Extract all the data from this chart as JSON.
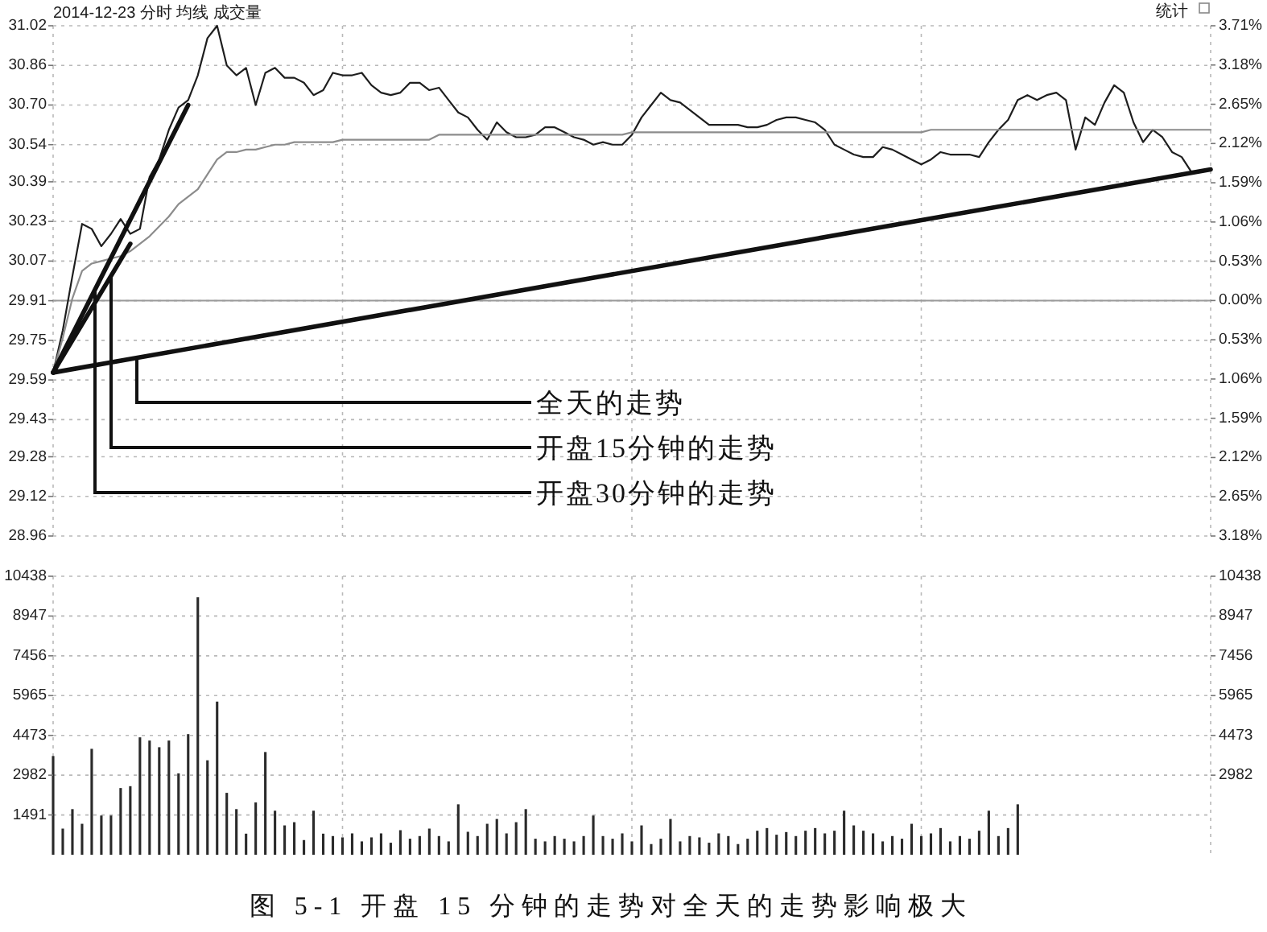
{
  "chart_data": [
    {
      "type": "line",
      "title": "2014-12-23 分时 均线 成交量",
      "categories": [
        null,
        null,
        null,
        null,
        null,
        null,
        null,
        null,
        null,
        null,
        null,
        null,
        null,
        null,
        null,
        null,
        null,
        null,
        null,
        null,
        null,
        null,
        null,
        null,
        null,
        null,
        null,
        null,
        null,
        null,
        null,
        null,
        null,
        null,
        null,
        null,
        null,
        null,
        null,
        null,
        null,
        null,
        null,
        null,
        null,
        null,
        null,
        null,
        null,
        null,
        null,
        null,
        null,
        null,
        null,
        null,
        null,
        null,
        null,
        null,
        null,
        null,
        null,
        null,
        null,
        null,
        null,
        null,
        null,
        null,
        null,
        null,
        null,
        null,
        null,
        null,
        null,
        null,
        null,
        null,
        null,
        null,
        null,
        null,
        null,
        null,
        null,
        null,
        null,
        null,
        null,
        null,
        null,
        null,
        null,
        null,
        null,
        null,
        null,
        null,
        null,
        null,
        null,
        null,
        null,
        null,
        null,
        null,
        null,
        null,
        null,
        null,
        null,
        null,
        null,
        null,
        null,
        null,
        null,
        null,
        null
      ],
      "series": [
        {
          "color": "#1e1e1e",
          "values": [
            29.62,
            29.79,
            30.01,
            30.22,
            30.2,
            30.13,
            30.18,
            30.24,
            30.18,
            30.2,
            30.41,
            30.48,
            30.6,
            30.69,
            30.72,
            30.82,
            30.97,
            31.02,
            30.86,
            30.82,
            30.85,
            30.7,
            30.83,
            30.85,
            30.81,
            30.81,
            30.79,
            30.74,
            30.76,
            30.83,
            30.82,
            30.82,
            30.83,
            30.78,
            30.75,
            30.74,
            30.75,
            30.79,
            30.79,
            30.76,
            30.77,
            30.72,
            30.67,
            30.65,
            30.6,
            30.56,
            30.63,
            30.59,
            30.57,
            30.57,
            30.58,
            30.61,
            30.61,
            30.59,
            30.57,
            30.56,
            30.54,
            30.55,
            30.54,
            30.54,
            30.58,
            30.65,
            30.7,
            30.75,
            30.72,
            30.71,
            30.68,
            30.65,
            30.62,
            30.62,
            30.62,
            30.62,
            30.61,
            30.61,
            30.62,
            30.64,
            30.65,
            30.65,
            30.64,
            30.63,
            30.6,
            30.54,
            30.52,
            30.5,
            30.49,
            30.49,
            30.53,
            30.52,
            30.5,
            30.48,
            30.46,
            30.48,
            30.51,
            30.5,
            30.5,
            30.5,
            30.49,
            30.55,
            30.6,
            30.64,
            30.72,
            30.74,
            30.72,
            30.74,
            30.75,
            30.72,
            30.52,
            30.65,
            30.62,
            30.71,
            30.78,
            30.75,
            30.63,
            30.55,
            30.6,
            30.57,
            30.51,
            30.49,
            30.43,
            30.43,
            null
          ]
        },
        {
          "color": "#8c8c8c",
          "values": [
            29.62,
            29.76,
            29.92,
            30.03,
            30.06,
            30.07,
            30.08,
            30.09,
            30.11,
            30.14,
            30.17,
            30.21,
            30.25,
            30.3,
            30.33,
            30.36,
            30.42,
            30.48,
            30.51,
            30.51,
            30.52,
            30.52,
            30.53,
            30.54,
            30.54,
            30.55,
            30.55,
            30.55,
            30.55,
            30.55,
            30.56,
            30.56,
            30.56,
            30.56,
            30.56,
            30.56,
            30.56,
            30.56,
            30.56,
            30.56,
            30.58,
            30.58,
            30.58,
            30.58,
            30.58,
            30.58,
            30.58,
            30.58,
            30.58,
            30.58,
            30.58,
            30.58,
            30.58,
            30.58,
            30.58,
            30.58,
            30.58,
            30.58,
            30.58,
            30.58,
            30.59,
            30.59,
            30.59,
            30.59,
            30.59,
            30.59,
            30.59,
            30.59,
            30.59,
            30.59,
            30.59,
            30.59,
            30.59,
            30.59,
            30.59,
            30.59,
            30.59,
            30.59,
            30.59,
            30.59,
            30.59,
            30.59,
            30.59,
            30.59,
            30.59,
            30.59,
            30.59,
            30.59,
            30.59,
            30.59,
            30.59,
            30.6,
            30.6,
            30.6,
            30.6,
            30.6,
            30.6,
            30.6,
            30.6,
            30.6,
            30.6,
            30.6,
            30.6,
            30.6,
            30.6,
            30.6,
            30.6,
            30.6,
            30.6,
            30.6,
            30.6,
            30.6,
            30.6,
            30.6,
            30.6,
            30.6,
            30.6,
            30.6,
            30.6,
            30.6,
            30.6
          ]
        },
        {
          "name": "全天的走势",
          "color": "#111111",
          "values": [
            29.62,
            null,
            null,
            null,
            null,
            null,
            null,
            null,
            null,
            null,
            null,
            null,
            null,
            null,
            null,
            null,
            null,
            null,
            null,
            null,
            null,
            null,
            null,
            null,
            null,
            null,
            null,
            null,
            null,
            null,
            null,
            null,
            null,
            null,
            null,
            null,
            null,
            null,
            null,
            null,
            null,
            null,
            null,
            null,
            null,
            null,
            null,
            null,
            null,
            null,
            null,
            null,
            null,
            null,
            null,
            null,
            null,
            null,
            null,
            null,
            null,
            null,
            null,
            null,
            null,
            null,
            null,
            null,
            null,
            null,
            null,
            null,
            null,
            null,
            null,
            null,
            null,
            null,
            null,
            null,
            null,
            null,
            null,
            null,
            null,
            null,
            null,
            null,
            null,
            null,
            null,
            null,
            null,
            null,
            null,
            null,
            null,
            null,
            null,
            null,
            null,
            null,
            null,
            null,
            null,
            null,
            null,
            null,
            null,
            null,
            null,
            null,
            null,
            null,
            null,
            null,
            null,
            null,
            null,
            null,
            30.44
          ]
        },
        {
          "name": "开盘15分钟的走势",
          "color": "#111111",
          "values": [
            29.62,
            null,
            null,
            null,
            null,
            null,
            null,
            null,
            30.14,
            null,
            null,
            null,
            null,
            null,
            null,
            null,
            null,
            null,
            null,
            null,
            null,
            null,
            null,
            null,
            null,
            null,
            null,
            null,
            null,
            null,
            null,
            null,
            null,
            null,
            null,
            null,
            null,
            null,
            null,
            null,
            null,
            null,
            null,
            null,
            null,
            null,
            null,
            null,
            null,
            null,
            null,
            null,
            null,
            null,
            null,
            null,
            null,
            null,
            null,
            null,
            null,
            null,
            null,
            null,
            null,
            null,
            null,
            null,
            null,
            null,
            null,
            null,
            null,
            null,
            null,
            null,
            null,
            null,
            null,
            null,
            null,
            null,
            null,
            null,
            null,
            null,
            null,
            null,
            null,
            null,
            null,
            null,
            null,
            null,
            null,
            null,
            null,
            null,
            null,
            null,
            null,
            null,
            null,
            null,
            null,
            null,
            null,
            null,
            null,
            null,
            null,
            null,
            null,
            null,
            null,
            null,
            null,
            null,
            null,
            null,
            null
          ]
        },
        {
          "name": "开盘30分钟的走势",
          "color": "#111111",
          "values": [
            29.62,
            null,
            null,
            null,
            null,
            null,
            null,
            null,
            null,
            null,
            null,
            null,
            null,
            null,
            30.7,
            null,
            null,
            null,
            null,
            null,
            null,
            null,
            null,
            null,
            null,
            null,
            null,
            null,
            null,
            null,
            null,
            null,
            null,
            null,
            null,
            null,
            null,
            null,
            null,
            null,
            null,
            null,
            null,
            null,
            null,
            null,
            null,
            null,
            null,
            null,
            null,
            null,
            null,
            null,
            null,
            null,
            null,
            null,
            null,
            null,
            null,
            null,
            null,
            null,
            null,
            null,
            null,
            null,
            null,
            null,
            null,
            null,
            null,
            null,
            null,
            null,
            null,
            null,
            null,
            null,
            null,
            null,
            null,
            null,
            null,
            null,
            null,
            null,
            null,
            null,
            null,
            null,
            null,
            null,
            null,
            null,
            null,
            null,
            null,
            null,
            null,
            null,
            null,
            null,
            null,
            null,
            null,
            null,
            null,
            null,
            null,
            null,
            null,
            null,
            null,
            null,
            null,
            null,
            null,
            null,
            null
          ]
        }
      ],
      "ylim": [
        28.96,
        31.02
      ],
      "yticks": [
        31.02,
        30.86,
        {
          "value": 30.7,
          "label": "30.70"
        },
        30.54,
        30.39,
        30.23,
        30.07,
        29.91,
        29.75,
        29.59,
        29.43,
        29.28,
        29.12,
        28.96
      ],
      "y2lim": [
        -3.18,
        3.71
      ],
      "y2ticks": [
        {
          "value": 3.71,
          "label": "3.71%"
        },
        {
          "value": 3.18,
          "label": "3.18%"
        },
        {
          "value": 2.65,
          "label": "2.65%"
        },
        {
          "value": 2.12,
          "label": "2.12%"
        },
        {
          "value": 1.59,
          "label": "1.59%"
        },
        {
          "value": 1.06,
          "label": "1.06%"
        },
        {
          "value": 0.53,
          "label": "0.53%"
        },
        {
          "value": 0,
          "label": "0.00%"
        },
        {
          "value": -0.53,
          "label": "0.53%"
        },
        {
          "value": -1.06,
          "label": "1.06%"
        },
        {
          "value": -1.59,
          "label": "1.59%"
        },
        {
          "value": -2.12,
          "label": "2.12%"
        },
        {
          "value": -2.65,
          "label": "2.65%"
        },
        {
          "value": -3.18,
          "label": "3.18%"
        }
      ],
      "grid": true,
      "ref_lines": [
        {
          "axis": "y",
          "value": 29.91,
          "color": "#9a9a9a"
        }
      ],
      "annotations": [
        "统计"
      ]
    },
    {
      "type": "bar",
      "categories": [
        null,
        null,
        null,
        null,
        null,
        null,
        null,
        null,
        null,
        null,
        null,
        null,
        null,
        null,
        null,
        null,
        null,
        null,
        null,
        null,
        null,
        null,
        null,
        null,
        null,
        null,
        null,
        null,
        null,
        null,
        null,
        null,
        null,
        null,
        null,
        null,
        null,
        null,
        null,
        null,
        null,
        null,
        null,
        null,
        null,
        null,
        null,
        null,
        null,
        null,
        null,
        null,
        null,
        null,
        null,
        null,
        null,
        null,
        null,
        null,
        null,
        null,
        null,
        null,
        null,
        null,
        null,
        null,
        null,
        null,
        null,
        null,
        null,
        null,
        null,
        null,
        null,
        null,
        null,
        null,
        null,
        null,
        null,
        null,
        null,
        null,
        null,
        null,
        null,
        null,
        null,
        null,
        null,
        null,
        null,
        null,
        null,
        null,
        null,
        null,
        null,
        null,
        null,
        null,
        null,
        null,
        null,
        null,
        null,
        null,
        null,
        null,
        null,
        null,
        null,
        null,
        null,
        null,
        null,
        null,
        null
      ],
      "values": [
        3700,
        980,
        1710,
        1160,
        3970,
        1470,
        1470,
        2500,
        2570,
        4400,
        4280,
        4030,
        4280,
        3050,
        4520,
        9650,
        3540,
        5740,
        2320,
        1710,
        790,
        1960,
        3850,
        1650,
        1100,
        1220,
        550,
        1650,
        790,
        700,
        650,
        800,
        500,
        650,
        800,
        450,
        920,
        600,
        700,
        980,
        700,
        500,
        1890,
        860,
        700,
        1160,
        1340,
        800,
        1220,
        1710,
        600,
        500,
        700,
        600,
        500,
        700,
        1470,
        700,
        600,
        800,
        500,
        1100,
        400,
        600,
        1340,
        500,
        700,
        650,
        450,
        800,
        700,
        400,
        600,
        900,
        1000,
        750,
        850,
        700,
        900,
        1000,
        800,
        900,
        1650,
        1100,
        900,
        800,
        500,
        700,
        600,
        1160,
        700,
        800,
        1000,
        500,
        700,
        600,
        900,
        1650,
        700,
        1000,
        1890,
        null,
        null,
        null,
        null,
        null,
        null,
        null,
        null,
        null,
        null,
        null,
        null,
        null,
        null,
        null,
        null,
        null,
        null,
        null,
        null
      ],
      "color": "#2a2a2a",
      "ylim": [
        0,
        10438
      ],
      "yticks": [
        1491,
        2982,
        4473,
        5965,
        7456,
        8947,
        10438
      ],
      "y2lim": [
        0,
        10438
      ],
      "y2ticks": [
        2982,
        4473,
        5965,
        7456,
        8947,
        10438
      ],
      "grid": true,
      "annotations": [
        "图 5-1 开盘 15 分钟的走势对全天的走势影响极大"
      ]
    }
  ]
}
